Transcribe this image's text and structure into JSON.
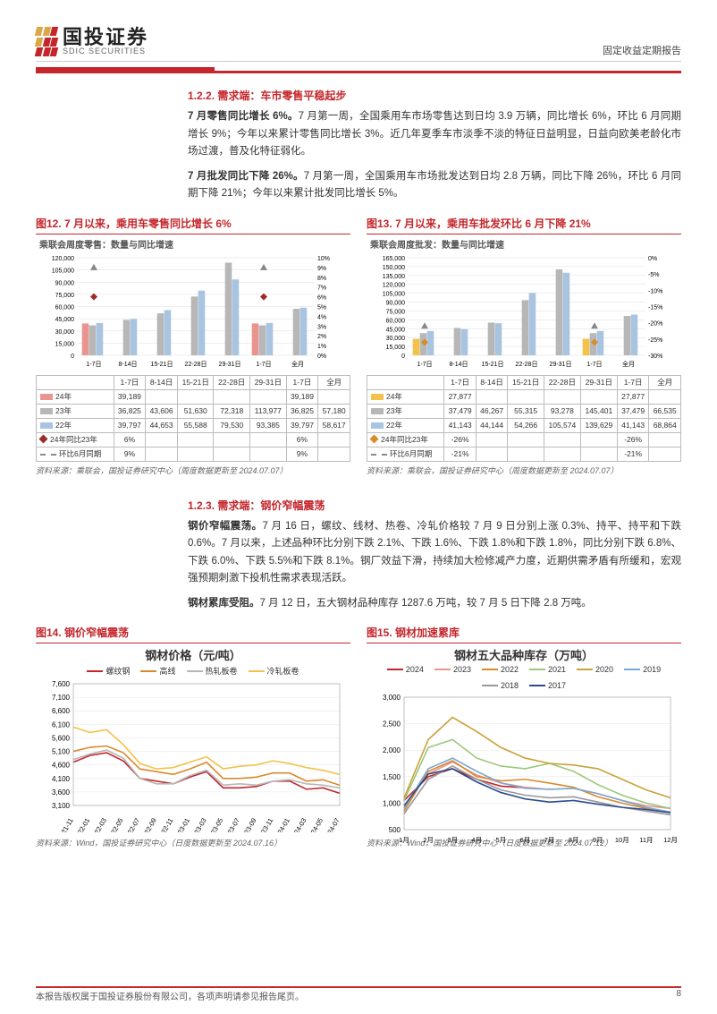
{
  "header": {
    "company_cn": "国投证券",
    "company_en": "SDIC SECURITIES",
    "report_type": "固定收益定期报告",
    "logo_colors": [
      "#d9a948",
      "#d9a948",
      "#d9a948",
      "#c4262b",
      "#c4262b",
      "#c4262b"
    ]
  },
  "sec122": {
    "heading": "1.2.2. 需求端：车市零售平稳起步",
    "p1_bold": "7 月零售同比增长 6%。",
    "p1": "7 月第一周，全国乘用车市场零售达到日均 3.9 万辆，同比增长 6%，环比 6 月同期增长 9%；今年以来累计零售同比增长 3%。近几年夏季车市淡季不淡的特征日益明显，日益向欧美老龄化市场过渡，普及化特征弱化。",
    "p2_bold": "7 月批发同比下降 26%。",
    "p2": "7 月第一周，全国乘用车市场批发达到日均 2.8 万辆，同比下降 26%，环比 6 月同期下降 21%；今年以来累计批发同比增长 5%。"
  },
  "fig12": {
    "title": "图12. 7 月以来，乘用车零售同比增长 6%",
    "subtitle": "乘联会周度零售：数量与同比增速",
    "categories": [
      "1-7日",
      "8-14日",
      "15-21日",
      "22-28日",
      "29-31日",
      "1-7日",
      "全月"
    ],
    "ylim": [
      0,
      120000
    ],
    "ytick": 15000,
    "ylim2": [
      0,
      0.1
    ],
    "ytick2": 0.01,
    "series": {
      "y24": {
        "label": "24年",
        "color": "#e9948f",
        "values": [
          39189,
          null,
          null,
          null,
          null,
          39189,
          null
        ]
      },
      "y23": {
        "label": "23年",
        "color": "#b7b7b7",
        "values": [
          36825,
          43606,
          51630,
          72318,
          113977,
          36825,
          57180
        ]
      },
      "y22": {
        "label": "22年",
        "color": "#a8c4e0",
        "values": [
          39797,
          44653,
          55588,
          79530,
          93385,
          39797,
          58617
        ]
      },
      "yoy23": {
        "label": "24年同比23年",
        "color": "#9c2b2b",
        "marker": "diamond",
        "values": [
          0.06,
          null,
          null,
          null,
          null,
          0.06,
          null
        ]
      },
      "mom": {
        "label": "环比6月同期",
        "color": "#888",
        "marker": "upTriangle",
        "values": [
          0.09,
          null,
          null,
          null,
          null,
          0.09,
          null
        ]
      }
    },
    "source": "资料来源：乘联会，国投证券研究中心（周度数据更新至 2024.07.07）"
  },
  "fig13": {
    "title": "图13. 7 月以来，乘用车批发环比 6 月下降 21%",
    "subtitle": "乘联会周度批发：数量与同比增速",
    "categories": [
      "1-7日",
      "8-14日",
      "15-21日",
      "22-28日",
      "29-31日",
      "1-7日",
      "全月"
    ],
    "ylim": [
      0,
      165000
    ],
    "ytick": 15000,
    "ylim2": [
      -0.3,
      0
    ],
    "ytick2": 0.05,
    "series": {
      "y24": {
        "label": "24年",
        "color": "#f2c24b",
        "values": [
          27877,
          null,
          null,
          null,
          null,
          27877,
          null
        ]
      },
      "y23": {
        "label": "23年",
        "color": "#b7b7b7",
        "values": [
          37479,
          46267,
          55315,
          93278,
          145401,
          37479,
          66535
        ]
      },
      "y22": {
        "label": "22年",
        "color": "#a8c4e0",
        "values": [
          41143,
          44144,
          54266,
          105574,
          139629,
          41143,
          68864
        ]
      },
      "yoy23": {
        "label": "24年同比23年",
        "color": "#d98a2b",
        "marker": "diamond",
        "values": [
          -0.26,
          null,
          null,
          null,
          null,
          -0.26,
          null
        ]
      },
      "mom": {
        "label": "环比6月同期",
        "color": "#888",
        "marker": "upTriangle",
        "values": [
          -0.21,
          null,
          null,
          null,
          null,
          -0.21,
          null
        ]
      }
    },
    "source": "资料来源：乘联会，国投证券研究中心（周度数据更新至 2024.07.07）"
  },
  "sec123": {
    "heading": "1.2.3. 需求端：钢价窄幅震荡",
    "p1_bold": "钢价窄幅震荡。",
    "p1": "7 月 16 日，螺纹、线材、热卷、冷轧价格较 7 月 9 日分别上涨 0.3%、持平、持平和下跌 0.6%。7 月以来，上述品种环比分别下跌 2.1%、下跌 1.6%、下跌 1.8%和下跌 1.8%，同比分别下跌 6.8%、下跌 6.0%、下跌 5.5%和下跌 8.1%。钢厂效益下滑，持续加大检修减产力度，近期供需矛盾有所缓和，宏观强预期刺激下投机性需求表现活跃。",
    "p2_bold": "钢材累库受阻。",
    "p2": "7 月 12 日，五大钢材品种库存 1287.6 万吨，较 7 月 5 日下降 2.8 万吨。"
  },
  "fig14": {
    "title": "图14. 钢价窄幅震荡",
    "chart_title": "钢材价格（元/吨）",
    "ylim": [
      3100,
      7600
    ],
    "yticks": [
      3100,
      3600,
      4100,
      4600,
      5100,
      5600,
      6100,
      6600,
      7100,
      7600
    ],
    "xlabels": [
      "21-11",
      "22-01",
      "22-03",
      "22-05",
      "22-07",
      "22-09",
      "22-11",
      "23-01",
      "23-03",
      "23-05",
      "23-07",
      "23-09",
      "23-11",
      "24-01",
      "24-03",
      "24-05",
      "24-07"
    ],
    "series": [
      {
        "label": "螺纹钢",
        "color": "#c4262b",
        "path": [
          4700,
          4950,
          5050,
          4750,
          4100,
          4000,
          3900,
          4150,
          4350,
          3750,
          3750,
          3800,
          4000,
          4000,
          3700,
          3750,
          3550
        ]
      },
      {
        "label": "高线",
        "color": "#d98a2b",
        "path": [
          5100,
          5250,
          5300,
          5050,
          4450,
          4350,
          4250,
          4450,
          4700,
          4100,
          4100,
          4150,
          4300,
          4300,
          4000,
          4050,
          3850
        ]
      },
      {
        "label": "热轧板卷",
        "color": "#b7b7b7",
        "path": [
          4800,
          5000,
          5150,
          4850,
          4100,
          3900,
          3900,
          4200,
          4400,
          3850,
          3900,
          3850,
          4000,
          4050,
          3900,
          3850,
          3750
        ]
      },
      {
        "label": "冷轧板卷",
        "color": "#f2c24b",
        "path": [
          6000,
          5800,
          5900,
          5350,
          4650,
          4450,
          4500,
          4700,
          4900,
          4450,
          4550,
          4600,
          4750,
          4650,
          4500,
          4400,
          4250
        ]
      }
    ],
    "source": "资料来源：Wind，国投证券研究中心（日度数据更新至 2024.07.16）"
  },
  "fig15": {
    "title": "图15. 钢材加速累库",
    "chart_title": "钢材五大品种库存（万吨）",
    "ylim": [
      500,
      3000
    ],
    "yticks": [
      500,
      1000,
      1500,
      2000,
      2500,
      3000
    ],
    "xlabels": [
      "1月",
      "2月",
      "3月",
      "4月",
      "5月",
      "6月",
      "7月",
      "8月",
      "9月",
      "10月",
      "11月",
      "12月"
    ],
    "series": [
      {
        "label": "2024",
        "color": "#c4262b",
        "path": [
          1050,
          1500,
          1650,
          1450,
          1320,
          1290,
          null,
          null,
          null,
          null,
          null,
          null
        ]
      },
      {
        "label": "2023",
        "color": "#e9948f",
        "path": [
          950,
          1550,
          1780,
          1530,
          1380,
          1300,
          1260,
          1280,
          1180,
          1050,
          950,
          900
        ]
      },
      {
        "label": "2022",
        "color": "#d98a2b",
        "path": [
          850,
          1600,
          1800,
          1500,
          1420,
          1450,
          1380,
          1300,
          1120,
          1000,
          900,
          830
        ]
      },
      {
        "label": "2021",
        "color": "#9cc77a",
        "path": [
          1050,
          2050,
          2200,
          1850,
          1700,
          1650,
          1750,
          1600,
          1350,
          1150,
          1000,
          900
        ]
      },
      {
        "label": "2020",
        "color": "#c9a23a",
        "path": [
          1100,
          2200,
          2620,
          2350,
          2050,
          1850,
          1750,
          1720,
          1650,
          1450,
          1250,
          1100
        ]
      },
      {
        "label": "2019",
        "color": "#7aa8d4",
        "path": [
          900,
          1650,
          1850,
          1600,
          1380,
          1280,
          1260,
          1280,
          1180,
          1050,
          920,
          830
        ]
      },
      {
        "label": "2018",
        "color": "#999999",
        "path": [
          800,
          1450,
          1700,
          1450,
          1250,
          1150,
          1100,
          1120,
          1020,
          920,
          850,
          780
        ]
      },
      {
        "label": "2017",
        "color": "#2b4b8f",
        "path": [
          950,
          1550,
          1650,
          1400,
          1200,
          1080,
          1020,
          1050,
          980,
          920,
          880,
          820
        ]
      }
    ],
    "source": "资料来源：Wind，国投证券研究中心（日度数据更新至 2024.07.12）"
  },
  "footer": {
    "left": "本报告版权属于国投证券股份有限公司，各项声明请参见报告尾页。",
    "page": "8"
  }
}
